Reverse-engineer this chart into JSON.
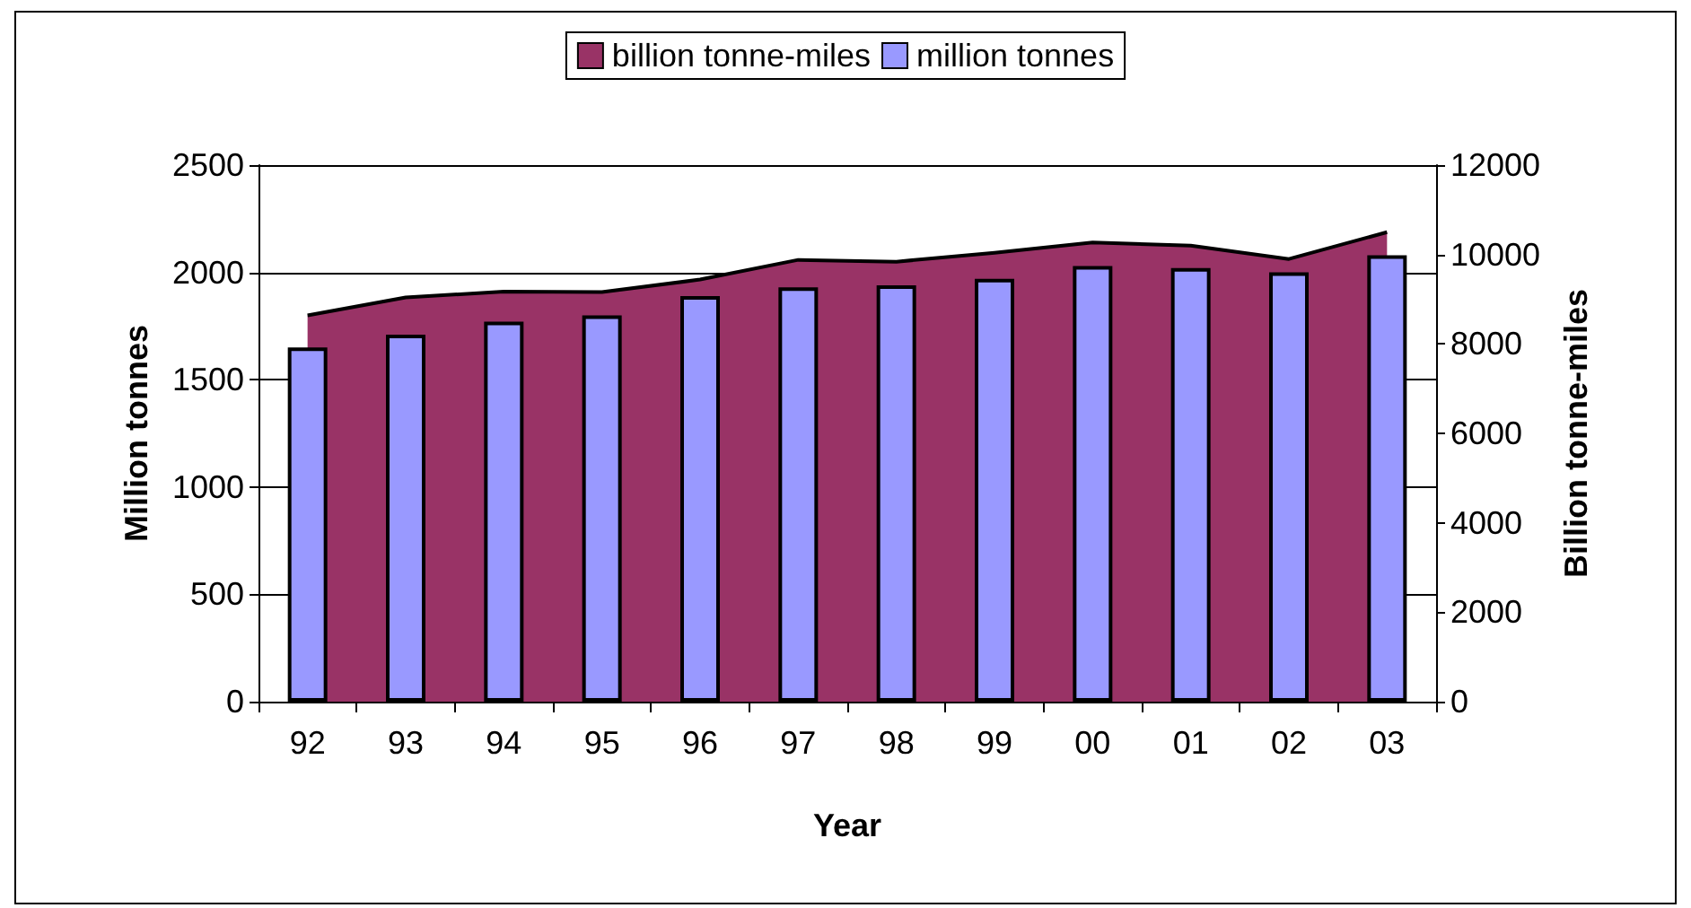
{
  "chart_data": {
    "type": "bar",
    "xlabel": "Year",
    "ylabel": "Million tonnes",
    "y2label": "Billion tonne-miles",
    "categories": [
      "92",
      "93",
      "94",
      "95",
      "96",
      "97",
      "98",
      "99",
      "00",
      "01",
      "02",
      "03"
    ],
    "series": [
      {
        "name": "billion tonne-miles",
        "type": "area",
        "axis": "y2",
        "color": "#993366",
        "values": [
          8640,
          9040,
          9170,
          9160,
          9440,
          9880,
          9840,
          10040,
          10270,
          10200,
          9900,
          10500
        ]
      },
      {
        "name": "million tonnes",
        "color": "#9999ff",
        "values": [
          1650,
          1710,
          1770,
          1800,
          1890,
          1930,
          1940,
          1970,
          2030,
          2020,
          2000,
          2080
        ]
      }
    ],
    "ylim": [
      0,
      2500
    ],
    "yticks": [
      0,
      500,
      1000,
      1500,
      2000,
      2500
    ],
    "y2lim": [
      0,
      12000
    ],
    "y2ticks": [
      0,
      2000,
      4000,
      6000,
      8000,
      10000,
      12000
    ],
    "grid": "y",
    "legend": "top",
    "marker": "none"
  }
}
